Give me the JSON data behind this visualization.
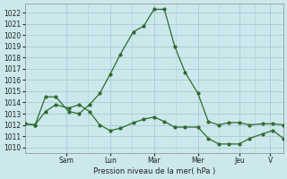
{
  "xlabel": "Pression niveau de la mer( hPa )",
  "ylim": [
    1009.5,
    1022.8
  ],
  "yticks": [
    1010,
    1011,
    1012,
    1013,
    1014,
    1015,
    1016,
    1017,
    1018,
    1019,
    1020,
    1021,
    1022
  ],
  "day_labels": [
    "Sam",
    "Lun",
    "Mar",
    "Mer",
    "Jeu",
    "V"
  ],
  "day_positions": [
    0.16,
    0.33,
    0.5,
    0.67,
    0.83,
    0.95
  ],
  "bg_color": "#cce8ec",
  "grid_color": "#aad0d8",
  "line_color": "#2d6a2d",
  "line1_x": [
    0,
    0.04,
    0.08,
    0.12,
    0.17,
    0.21,
    0.25,
    0.29,
    0.33,
    0.37,
    0.42,
    0.46,
    0.5,
    0.54,
    0.58,
    0.62,
    0.67,
    0.71,
    0.75,
    0.79,
    0.83,
    0.87,
    0.92,
    0.96,
    1.0
  ],
  "line1_y": [
    1012.1,
    1012.0,
    1014.5,
    1014.5,
    1013.2,
    1013.0,
    1013.8,
    1014.8,
    1016.5,
    1018.3,
    1020.3,
    1020.8,
    1022.3,
    1022.3,
    1019.0,
    1016.7,
    1014.8,
    1012.3,
    1012.0,
    1012.2,
    1012.2,
    1012.0,
    1012.1,
    1012.1,
    1012.0
  ],
  "line2_x": [
    0,
    0.04,
    0.08,
    0.12,
    0.17,
    0.21,
    0.25,
    0.29,
    0.33,
    0.37,
    0.42,
    0.46,
    0.5,
    0.54,
    0.58,
    0.62,
    0.67,
    0.71,
    0.75,
    0.79,
    0.83,
    0.87,
    0.92,
    0.96,
    1.0
  ],
  "line2_y": [
    1012.1,
    1012.0,
    1013.2,
    1013.8,
    1013.5,
    1013.8,
    1013.2,
    1012.0,
    1011.5,
    1011.7,
    1012.2,
    1012.5,
    1012.7,
    1012.3,
    1011.8,
    1011.8,
    1011.8,
    1010.8,
    1010.3,
    1010.3,
    1010.3,
    1010.8,
    1011.2,
    1011.5,
    1010.8
  ]
}
